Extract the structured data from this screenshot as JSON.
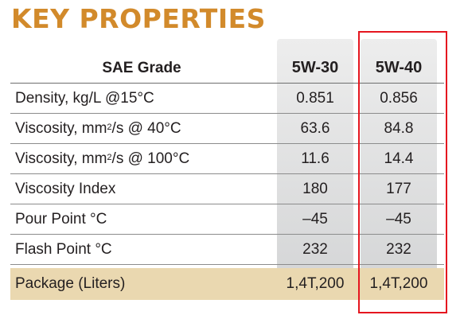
{
  "title": "KEY PROPERTIES",
  "table": {
    "header": {
      "label": "SAE Grade",
      "col1": "5W-30",
      "col2": "5W-40"
    },
    "rows": [
      {
        "label": "Density, kg/L @15°C",
        "col1": "0.851",
        "col2": "0.856"
      },
      {
        "label_pre": "Viscosity, mm",
        "label_sup": "2",
        "label_post": "/s @ 40°C",
        "col1": "63.6",
        "col2": "84.8"
      },
      {
        "label_pre": "Viscosity, mm",
        "label_sup": "2",
        "label_post": "/s @ 100°C",
        "col1": "11.6",
        "col2": "14.4"
      },
      {
        "label": "Viscosity Index",
        "col1": "180",
        "col2": "177"
      },
      {
        "label": "Pour Point  °C",
        "col1": "–45",
        "col2": "–45"
      },
      {
        "label": "Flash Point  °C",
        "col1": "232",
        "col2": "232"
      }
    ],
    "package": {
      "label": "Package (Liters)",
      "col1": "1,4T,200",
      "col2": "1,4T,200"
    }
  },
  "colors": {
    "title": "#d28a2b",
    "package_row": "#ead8b0",
    "highlight_border": "#e5161f",
    "column_bg": "#dcdcdc"
  }
}
